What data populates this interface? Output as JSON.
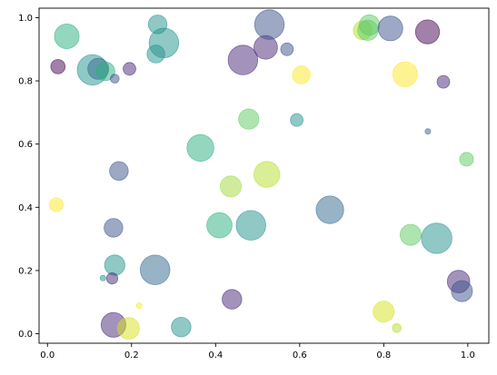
{
  "chart_data": {
    "type": "scatter",
    "title": "",
    "xlabel": "",
    "ylabel": "",
    "xlim": [
      -0.02,
      1.05
    ],
    "ylim": [
      -0.03,
      1.03
    ],
    "grid": false,
    "colormap": "viridis",
    "alpha": 0.5,
    "x_ticks": [
      {
        "value": 0.0,
        "label": "0.0"
      },
      {
        "value": 0.2,
        "label": "0.2"
      },
      {
        "value": 0.4,
        "label": "0.4"
      },
      {
        "value": 0.6,
        "label": "0.6"
      },
      {
        "value": 0.8,
        "label": "0.8"
      },
      {
        "value": 1.0,
        "label": "1.0"
      }
    ],
    "y_ticks": [
      {
        "value": 0.0,
        "label": "0.0"
      },
      {
        "value": 0.2,
        "label": "0.2"
      },
      {
        "value": 0.4,
        "label": "0.4"
      },
      {
        "value": 0.6,
        "label": "0.6"
      },
      {
        "value": 0.8,
        "label": "0.8"
      },
      {
        "value": 1.0,
        "label": "1.0"
      }
    ],
    "points": [
      {
        "x": 0.046,
        "y": 0.941,
        "size": 0.38,
        "color": "#2ab07f"
      },
      {
        "x": 0.025,
        "y": 0.845,
        "size": 0.13,
        "color": "#440154"
      },
      {
        "x": 0.107,
        "y": 0.835,
        "size": 0.58,
        "color": "#21918c"
      },
      {
        "x": 0.121,
        "y": 0.838,
        "size": 0.28,
        "color": "#31688e"
      },
      {
        "x": 0.138,
        "y": 0.83,
        "size": 0.22,
        "color": "#2ab07f"
      },
      {
        "x": 0.16,
        "y": 0.807,
        "size": 0.05,
        "color": "#3b528b"
      },
      {
        "x": 0.195,
        "y": 0.838,
        "size": 0.1,
        "color": "#482878"
      },
      {
        "x": 0.262,
        "y": 0.979,
        "size": 0.22,
        "color": "#21918c"
      },
      {
        "x": 0.258,
        "y": 0.885,
        "size": 0.2,
        "color": "#21918c"
      },
      {
        "x": 0.277,
        "y": 0.92,
        "size": 0.55,
        "color": "#21918c"
      },
      {
        "x": 0.465,
        "y": 0.866,
        "size": 0.55,
        "color": "#482878"
      },
      {
        "x": 0.519,
        "y": 0.906,
        "size": 0.35,
        "color": "#482878"
      },
      {
        "x": 0.528,
        "y": 0.978,
        "size": 0.55,
        "color": "#3b528b"
      },
      {
        "x": 0.57,
        "y": 0.9,
        "size": 0.1,
        "color": "#3b528b"
      },
      {
        "x": 0.604,
        "y": 0.819,
        "size": 0.2,
        "color": "#fde725"
      },
      {
        "x": 0.75,
        "y": 0.96,
        "size": 0.22,
        "color": "#b5de2b"
      },
      {
        "x": 0.762,
        "y": 0.96,
        "size": 0.26,
        "color": "#5ec962"
      },
      {
        "x": 0.766,
        "y": 0.977,
        "size": 0.26,
        "color": "#5ec962"
      },
      {
        "x": 0.816,
        "y": 0.966,
        "size": 0.38,
        "color": "#3b528b"
      },
      {
        "x": 0.904,
        "y": 0.955,
        "size": 0.36,
        "color": "#440154"
      },
      {
        "x": 0.851,
        "y": 0.821,
        "size": 0.38,
        "color": "#fde725"
      },
      {
        "x": 0.942,
        "y": 0.797,
        "size": 0.1,
        "color": "#482878"
      },
      {
        "x": 0.593,
        "y": 0.676,
        "size": 0.1,
        "color": "#21918c"
      },
      {
        "x": 0.905,
        "y": 0.64,
        "size": 0.02,
        "color": "#31688e"
      },
      {
        "x": 0.997,
        "y": 0.552,
        "size": 0.12,
        "color": "#5ec962"
      },
      {
        "x": 0.479,
        "y": 0.679,
        "size": 0.26,
        "color": "#5ec962"
      },
      {
        "x": 0.364,
        "y": 0.588,
        "size": 0.45,
        "color": "#2ab07f"
      },
      {
        "x": 0.17,
        "y": 0.515,
        "size": 0.22,
        "color": "#3b528b"
      },
      {
        "x": 0.021,
        "y": 0.408,
        "size": 0.12,
        "color": "#fde725"
      },
      {
        "x": 0.436,
        "y": 0.466,
        "size": 0.28,
        "color": "#a0da39"
      },
      {
        "x": 0.522,
        "y": 0.504,
        "size": 0.42,
        "color": "#b5de2b"
      },
      {
        "x": 0.409,
        "y": 0.343,
        "size": 0.4,
        "color": "#2ab07f"
      },
      {
        "x": 0.484,
        "y": 0.343,
        "size": 0.55,
        "color": "#21918c"
      },
      {
        "x": 0.672,
        "y": 0.392,
        "size": 0.48,
        "color": "#31688e"
      },
      {
        "x": 0.157,
        "y": 0.335,
        "size": 0.22,
        "color": "#3b528b"
      },
      {
        "x": 0.864,
        "y": 0.313,
        "size": 0.28,
        "color": "#5ec962"
      },
      {
        "x": 0.926,
        "y": 0.302,
        "size": 0.58,
        "color": "#21918c"
      },
      {
        "x": 0.16,
        "y": 0.217,
        "size": 0.26,
        "color": "#21918c"
      },
      {
        "x": 0.256,
        "y": 0.202,
        "size": 0.55,
        "color": "#31688e"
      },
      {
        "x": 0.132,
        "y": 0.176,
        "size": 0.02,
        "color": "#21918c"
      },
      {
        "x": 0.154,
        "y": 0.175,
        "size": 0.08,
        "color": "#482878"
      },
      {
        "x": 0.978,
        "y": 0.165,
        "size": 0.32,
        "color": "#482878"
      },
      {
        "x": 0.986,
        "y": 0.135,
        "size": 0.28,
        "color": "#3b528b"
      },
      {
        "x": 0.439,
        "y": 0.109,
        "size": 0.24,
        "color": "#482878"
      },
      {
        "x": 0.218,
        "y": 0.089,
        "size": 0.02,
        "color": "#fde725"
      },
      {
        "x": 0.8,
        "y": 0.07,
        "size": 0.28,
        "color": "#d8e219"
      },
      {
        "x": 0.157,
        "y": 0.028,
        "size": 0.38,
        "color": "#482878"
      },
      {
        "x": 0.193,
        "y": 0.017,
        "size": 0.3,
        "color": "#d8e219"
      },
      {
        "x": 0.318,
        "y": 0.021,
        "size": 0.24,
        "color": "#21918c"
      },
      {
        "x": 0.831,
        "y": 0.018,
        "size": 0.05,
        "color": "#b5de2b"
      }
    ]
  }
}
